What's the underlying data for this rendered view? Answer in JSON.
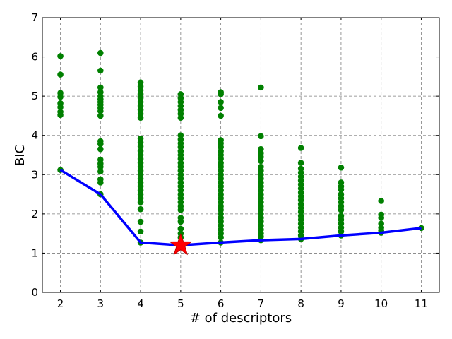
{
  "chart_data": {
    "type": "scatter",
    "title": "",
    "xlabel": "# of descriptors",
    "ylabel": "BIC",
    "xlim": [
      1.55,
      11.45
    ],
    "ylim": [
      0,
      7
    ],
    "x_ticks": [
      2,
      3,
      4,
      5,
      6,
      7,
      8,
      9,
      10,
      11
    ],
    "y_ticks": [
      0,
      1,
      2,
      3,
      4,
      5,
      6,
      7
    ],
    "grid": true,
    "grid_style": "dashed",
    "colors": {
      "points": "#008000",
      "line": "#0000ff",
      "marker": "#ff0000"
    },
    "series": [
      {
        "type": "scatter",
        "points": [
          [
            2,
            6.02
          ],
          [
            2,
            5.55
          ],
          [
            2,
            5.08
          ],
          [
            2,
            4.98
          ],
          [
            2,
            4.82
          ],
          [
            2,
            4.72
          ],
          [
            2,
            4.6
          ],
          [
            2,
            4.52
          ],
          [
            2,
            3.12
          ],
          [
            3,
            6.1
          ],
          [
            3,
            5.65
          ],
          [
            3,
            5.22
          ],
          [
            3,
            5.1
          ],
          [
            3,
            5.0
          ],
          [
            3,
            4.92
          ],
          [
            3,
            4.85
          ],
          [
            3,
            4.78
          ],
          [
            3,
            4.7
          ],
          [
            3,
            4.62
          ],
          [
            3,
            4.5
          ],
          [
            3,
            3.85
          ],
          [
            3,
            3.78
          ],
          [
            3,
            3.65
          ],
          [
            3,
            3.38
          ],
          [
            3,
            3.28
          ],
          [
            3,
            3.2
          ],
          [
            3,
            3.08
          ],
          [
            3,
            2.88
          ],
          [
            3,
            2.8
          ],
          [
            3,
            2.5
          ],
          [
            4,
            5.35
          ],
          [
            4,
            5.25
          ],
          [
            4,
            5.15
          ],
          [
            4,
            5.05
          ],
          [
            4,
            4.95
          ],
          [
            4,
            4.85
          ],
          [
            4,
            4.75
          ],
          [
            4,
            4.65
          ],
          [
            4,
            4.55
          ],
          [
            4,
            4.45
          ],
          [
            4,
            3.92
          ],
          [
            4,
            3.82
          ],
          [
            4,
            3.72
          ],
          [
            4,
            3.6
          ],
          [
            4,
            3.5
          ],
          [
            4,
            3.4
          ],
          [
            4,
            3.3
          ],
          [
            4,
            3.2
          ],
          [
            4,
            3.1
          ],
          [
            4,
            3.0
          ],
          [
            4,
            2.9
          ],
          [
            4,
            2.8
          ],
          [
            4,
            2.7
          ],
          [
            4,
            2.6
          ],
          [
            4,
            2.5
          ],
          [
            4,
            2.4
          ],
          [
            4,
            2.3
          ],
          [
            4,
            2.12
          ],
          [
            4,
            1.8
          ],
          [
            4,
            1.55
          ],
          [
            4,
            1.27
          ],
          [
            5,
            5.05
          ],
          [
            5,
            4.95
          ],
          [
            5,
            4.85
          ],
          [
            5,
            4.75
          ],
          [
            5,
            4.65
          ],
          [
            5,
            4.55
          ],
          [
            5,
            4.45
          ],
          [
            5,
            4.0
          ],
          [
            5,
            3.9
          ],
          [
            5,
            3.8
          ],
          [
            5,
            3.7
          ],
          [
            5,
            3.6
          ],
          [
            5,
            3.5
          ],
          [
            5,
            3.4
          ],
          [
            5,
            3.3
          ],
          [
            5,
            3.2
          ],
          [
            5,
            3.1
          ],
          [
            5,
            3.0
          ],
          [
            5,
            2.9
          ],
          [
            5,
            2.8
          ],
          [
            5,
            2.7
          ],
          [
            5,
            2.6
          ],
          [
            5,
            2.5
          ],
          [
            5,
            2.4
          ],
          [
            5,
            2.3
          ],
          [
            5,
            2.2
          ],
          [
            5,
            2.1
          ],
          [
            5,
            1.9
          ],
          [
            5,
            1.8
          ],
          [
            5,
            1.62
          ],
          [
            5,
            1.5
          ],
          [
            5,
            1.4
          ],
          [
            6,
            5.1
          ],
          [
            6,
            5.05
          ],
          [
            6,
            4.85
          ],
          [
            6,
            4.7
          ],
          [
            6,
            4.5
          ],
          [
            6,
            3.88
          ],
          [
            6,
            3.8
          ],
          [
            6,
            3.7
          ],
          [
            6,
            3.6
          ],
          [
            6,
            3.5
          ],
          [
            6,
            3.4
          ],
          [
            6,
            3.3
          ],
          [
            6,
            3.2
          ],
          [
            6,
            3.1
          ],
          [
            6,
            3.0
          ],
          [
            6,
            2.9
          ],
          [
            6,
            2.8
          ],
          [
            6,
            2.7
          ],
          [
            6,
            2.6
          ],
          [
            6,
            2.5
          ],
          [
            6,
            2.4
          ],
          [
            6,
            2.3
          ],
          [
            6,
            2.2
          ],
          [
            6,
            2.1
          ],
          [
            6,
            2.0
          ],
          [
            6,
            1.9
          ],
          [
            6,
            1.8
          ],
          [
            6,
            1.7
          ],
          [
            6,
            1.6
          ],
          [
            6,
            1.5
          ],
          [
            6,
            1.4
          ],
          [
            6,
            1.27
          ],
          [
            7,
            5.22
          ],
          [
            7,
            3.98
          ],
          [
            7,
            3.65
          ],
          [
            7,
            3.55
          ],
          [
            7,
            3.45
          ],
          [
            7,
            3.35
          ],
          [
            7,
            3.2
          ],
          [
            7,
            3.1
          ],
          [
            7,
            3.0
          ],
          [
            7,
            2.9
          ],
          [
            7,
            2.8
          ],
          [
            7,
            2.7
          ],
          [
            7,
            2.6
          ],
          [
            7,
            2.5
          ],
          [
            7,
            2.4
          ],
          [
            7,
            2.3
          ],
          [
            7,
            2.2
          ],
          [
            7,
            2.1
          ],
          [
            7,
            2.0
          ],
          [
            7,
            1.9
          ],
          [
            7,
            1.8
          ],
          [
            7,
            1.7
          ],
          [
            7,
            1.6
          ],
          [
            7,
            1.5
          ],
          [
            7,
            1.42
          ],
          [
            7,
            1.33
          ],
          [
            8,
            3.68
          ],
          [
            8,
            3.3
          ],
          [
            8,
            3.15
          ],
          [
            8,
            3.05
          ],
          [
            8,
            2.95
          ],
          [
            8,
            2.85
          ],
          [
            8,
            2.75
          ],
          [
            8,
            2.65
          ],
          [
            8,
            2.55
          ],
          [
            8,
            2.45
          ],
          [
            8,
            2.35
          ],
          [
            8,
            2.25
          ],
          [
            8,
            2.15
          ],
          [
            8,
            2.05
          ],
          [
            8,
            1.95
          ],
          [
            8,
            1.85
          ],
          [
            8,
            1.75
          ],
          [
            8,
            1.65
          ],
          [
            8,
            1.55
          ],
          [
            8,
            1.45
          ],
          [
            8,
            1.36
          ],
          [
            9,
            3.18
          ],
          [
            9,
            2.8
          ],
          [
            9,
            2.7
          ],
          [
            9,
            2.62
          ],
          [
            9,
            2.5
          ],
          [
            9,
            2.4
          ],
          [
            9,
            2.3
          ],
          [
            9,
            2.2
          ],
          [
            9,
            2.1
          ],
          [
            9,
            1.95
          ],
          [
            9,
            1.85
          ],
          [
            9,
            1.75
          ],
          [
            9,
            1.65
          ],
          [
            9,
            1.55
          ],
          [
            9,
            1.45
          ],
          [
            10,
            2.33
          ],
          [
            10,
            1.98
          ],
          [
            10,
            1.9
          ],
          [
            10,
            1.75
          ],
          [
            10,
            1.65
          ],
          [
            10,
            1.58
          ],
          [
            10,
            1.52
          ],
          [
            11,
            1.64
          ]
        ]
      },
      {
        "type": "line",
        "x": [
          2,
          3,
          4,
          5,
          6,
          7,
          8,
          9,
          10,
          11
        ],
        "y": [
          3.12,
          2.5,
          1.27,
          1.2,
          1.27,
          1.33,
          1.36,
          1.45,
          1.52,
          1.64
        ]
      },
      {
        "type": "marker",
        "shape": "star",
        "x": 5,
        "y": 1.2
      }
    ]
  }
}
